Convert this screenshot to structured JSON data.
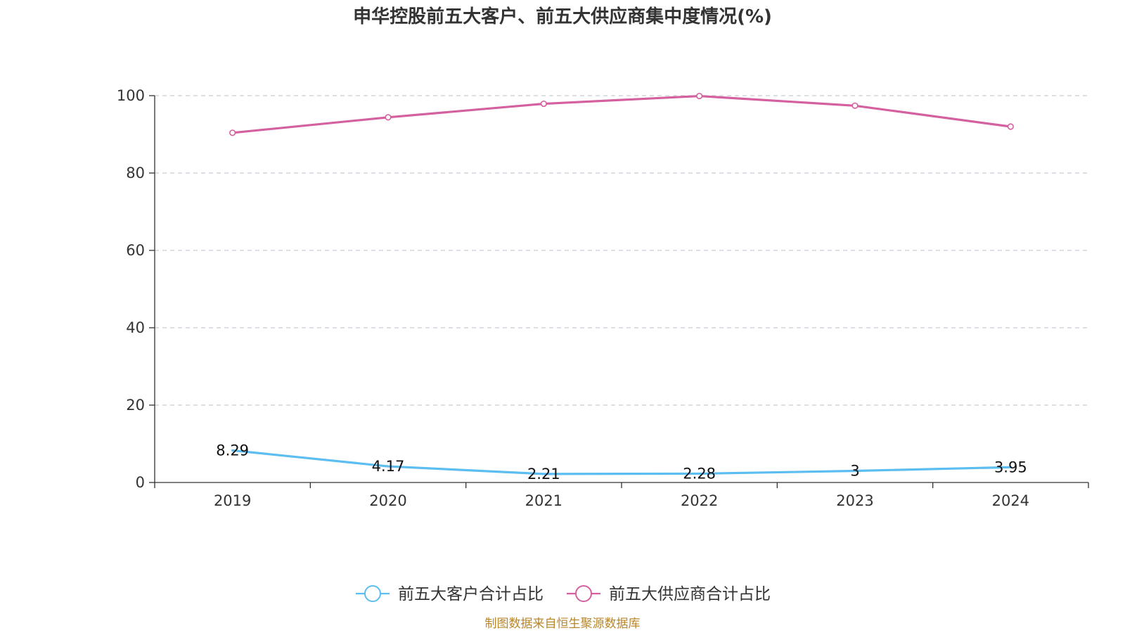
{
  "chart_data": {
    "type": "line",
    "title": "申华控股前五大客户、前五大供应商集中度情况(%)",
    "categories": [
      "2019",
      "2020",
      "2021",
      "2022",
      "2023",
      "2024"
    ],
    "ylim": [
      0,
      100
    ],
    "yticks": [
      0,
      20,
      40,
      60,
      80,
      100
    ],
    "grid": true,
    "legend_position": "bottom",
    "series": [
      {
        "name": "前五大客户合计占比",
        "values": [
          8.29,
          4.17,
          2.21,
          2.28,
          3,
          3.95
        ],
        "labels": [
          "8.29",
          "4.17",
          "2.21",
          "2.28",
          "3",
          "3.95"
        ],
        "color": "#5bbdf0",
        "show_markers": false,
        "show_labels": true
      },
      {
        "name": "前五大供应商合计占比",
        "values": [
          90.4,
          94.4,
          97.9,
          99.9,
          97.4,
          92.0
        ],
        "color": "#d4609f",
        "show_markers": true,
        "show_labels": false
      }
    ]
  },
  "source_note": "制图数据来自恒生聚源数据库"
}
